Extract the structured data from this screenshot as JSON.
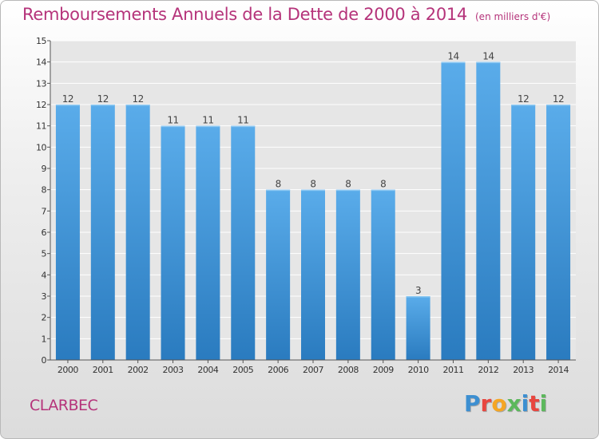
{
  "title": "Remboursements Annuels de la Dette de 2000 à 2014",
  "unit_note": "(en milliers d'€)",
  "commune": "CLARBEC",
  "logo": {
    "text": "Proxiti",
    "letter_colors": [
      "#3d8fd1",
      "#e8463f",
      "#f5a623",
      "#5cb85c",
      "#3d8fd1",
      "#e8463f",
      "#5cb85c"
    ]
  },
  "colors": {
    "bar_top": "#5aacea",
    "bar_bottom": "#2a7bbf",
    "title": "#b5337a"
  },
  "chart_data": {
    "type": "bar",
    "categories": [
      "2000",
      "2001",
      "2002",
      "2003",
      "2004",
      "2005",
      "2006",
      "2007",
      "2008",
      "2009",
      "2010",
      "2011",
      "2012",
      "2013",
      "2014"
    ],
    "values": [
      12,
      12,
      12,
      11,
      11,
      11,
      8,
      8,
      8,
      8,
      3,
      14,
      14,
      12,
      12
    ],
    "data_labels": [
      "12",
      "12",
      "12",
      "11",
      "11",
      "11",
      "8",
      "8",
      "8",
      "8",
      "3",
      "14",
      "14",
      "12",
      "12"
    ],
    "yticks": [
      "0",
      "1",
      "2",
      "3",
      "4",
      "5",
      "6",
      "7",
      "8",
      "9",
      "10",
      "11",
      "12",
      "13",
      "14",
      "15"
    ],
    "ylim": [
      0,
      15
    ],
    "grid": true
  }
}
